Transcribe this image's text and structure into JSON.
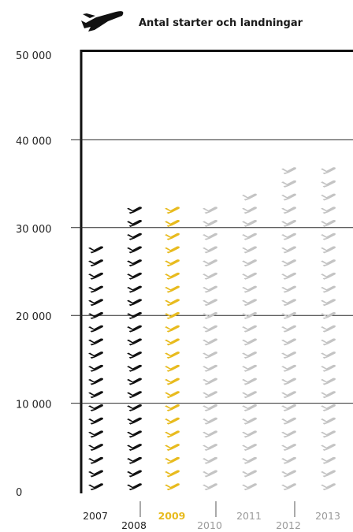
{
  "legend": {
    "icon": "airplane-icon",
    "label": "Antal starter och landningar"
  },
  "colors": {
    "actual": "#111111",
    "current": "#e8bb1e",
    "forecast": "#c4c4c4",
    "grid": "#2a2a2a"
  },
  "chart_data": {
    "type": "bar",
    "title": "",
    "xlabel": "",
    "ylabel": "",
    "ylim": [
      0,
      50000
    ],
    "yticks": [
      0,
      10000,
      20000,
      30000,
      40000,
      50000
    ],
    "ytick_labels": [
      "0",
      "10 000",
      "20 000",
      "30 000",
      "40 000",
      "50 000"
    ],
    "grid": true,
    "legend_position": "top-left",
    "unit_per_icon": 1500,
    "categories": [
      "2007",
      "2008",
      "2009",
      "2010",
      "2011",
      "2012",
      "2013"
    ],
    "values": [
      29000,
      32500,
      32500,
      33000,
      35000,
      37000,
      38000
    ],
    "bar_style": [
      "actual",
      "actual",
      "current",
      "forecast",
      "forecast",
      "forecast",
      "forecast"
    ]
  }
}
